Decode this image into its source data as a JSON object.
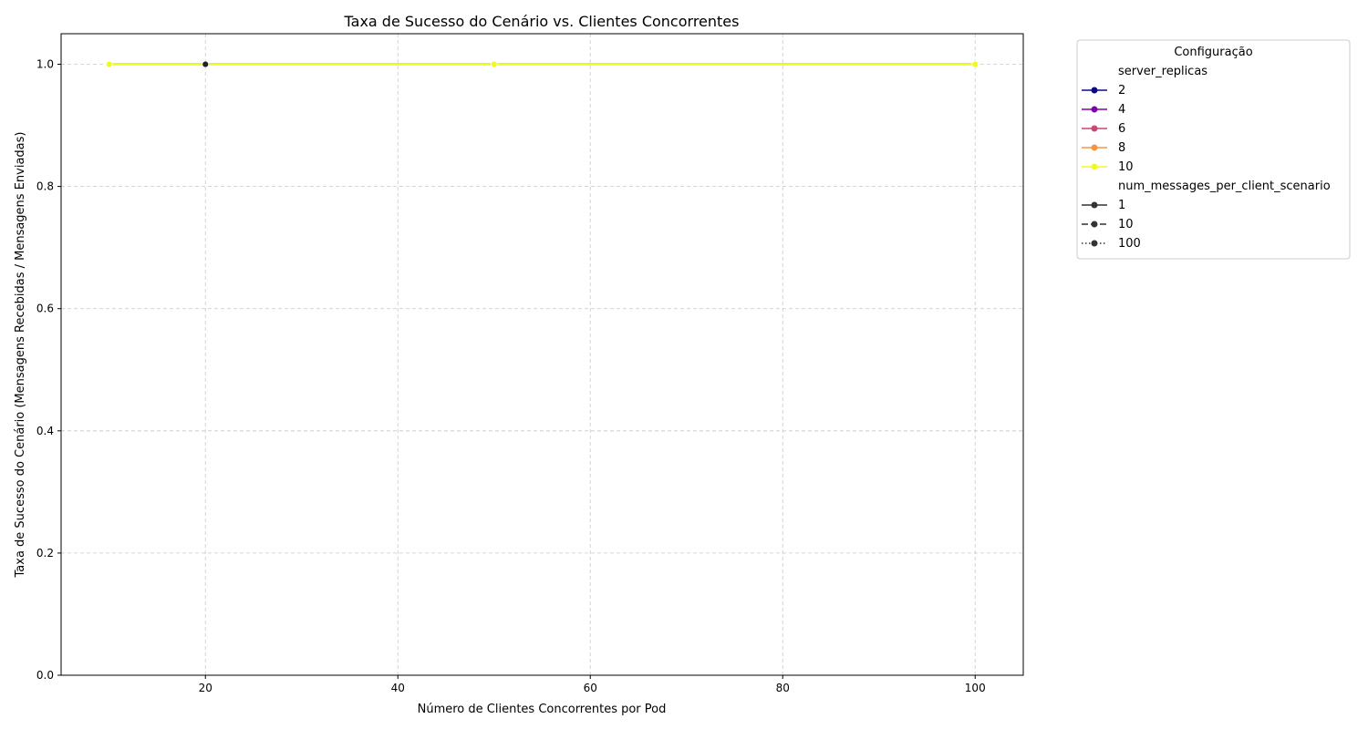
{
  "chart_data": {
    "type": "line",
    "title": "Taxa de Sucesso do Cenário vs. Clientes Concorrentes",
    "xlabel": "Número de Clientes Concorrentes por Pod",
    "ylabel": "Taxa de Sucesso do Cenário (Mensagens Recebidas / Mensagens Enviadas)",
    "xlim": [
      5,
      105
    ],
    "ylim": [
      0,
      1.05
    ],
    "xticks": [
      20,
      40,
      60,
      80,
      100
    ],
    "yticks": [
      0.0,
      0.2,
      0.4,
      0.6,
      0.8,
      1.0
    ],
    "grid": true,
    "legend": {
      "title": "Configuração",
      "placement": "outside-right",
      "groups": [
        {
          "title": "server_replicas",
          "entries": [
            {
              "label": "2",
              "color": "#0d0887",
              "dash": "solid"
            },
            {
              "label": "4",
              "color": "#7e03a8",
              "dash": "solid"
            },
            {
              "label": "6",
              "color": "#cc4778",
              "dash": "solid"
            },
            {
              "label": "8",
              "color": "#f89540",
              "dash": "solid"
            },
            {
              "label": "10",
              "color": "#f0f921",
              "dash": "solid"
            }
          ]
        },
        {
          "title": "num_messages_per_client_scenario",
          "entries": [
            {
              "label": "1",
              "color": "#333333",
              "dash": "solid"
            },
            {
              "label": "10",
              "color": "#333333",
              "dash": "dashed"
            },
            {
              "label": "100",
              "color": "#333333",
              "dash": "dotted"
            }
          ]
        }
      ]
    },
    "series": [
      {
        "color": "#0d0887",
        "dash": "solid",
        "x": [
          10,
          20,
          50,
          100
        ],
        "y": [
          1.0,
          1.0,
          1.0,
          1.0
        ]
      },
      {
        "color": "#0d0887",
        "dash": "dashed",
        "x": [
          10,
          20,
          50,
          100
        ],
        "y": [
          1.0,
          1.0,
          1.0,
          1.0
        ]
      },
      {
        "color": "#7e03a8",
        "dash": "solid",
        "x": [
          10,
          20,
          50,
          100
        ],
        "y": [
          1.0,
          1.0,
          1.0,
          1.0
        ]
      },
      {
        "color": "#cc4778",
        "dash": "solid",
        "x": [
          10,
          20,
          50,
          100
        ],
        "y": [
          1.0,
          1.0,
          1.0,
          1.0
        ]
      },
      {
        "color": "#f89540",
        "dash": "solid",
        "x": [
          10,
          20,
          50,
          100
        ],
        "y": [
          1.0,
          1.0,
          1.0,
          1.0
        ]
      },
      {
        "color": "#f0f921",
        "dash": "solid",
        "x": [
          10,
          50,
          100
        ],
        "y": [
          1.0,
          1.0,
          1.0
        ]
      }
    ],
    "highlight_points": [
      {
        "color": "#222222",
        "x": 20,
        "y": 1.0
      }
    ]
  }
}
